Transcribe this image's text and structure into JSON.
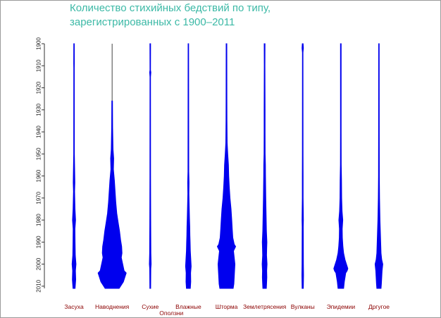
{
  "chart_data": {
    "type": "violin",
    "title_lines": [
      "Количество стихийных бедствий по типу,",
      "зарегистрированных с 1900–2011"
    ],
    "xlabel": "",
    "ylabel": "",
    "ylim": [
      1900,
      2011
    ],
    "y_reversed": true,
    "yticks": [
      "1900",
      "1910",
      "1920",
      "1930",
      "1940",
      "1950",
      "1960",
      "1970",
      "1980",
      "1990",
      "2000",
      "2010"
    ],
    "grid": false,
    "legend": "none",
    "color": "#0000ee",
    "categories": [
      {
        "label": "Засуха",
        "label_row": 0,
        "profile": [
          [
            1900,
            0.4
          ],
          [
            1909,
            0.5
          ],
          [
            1911,
            0.4
          ],
          [
            1950,
            0.5
          ],
          [
            1963,
            1.2
          ],
          [
            1967,
            0.8
          ],
          [
            1975,
            1.4
          ],
          [
            1980,
            2.2
          ],
          [
            1984,
            1.3
          ],
          [
            1990,
            1.5
          ],
          [
            1996,
            1.8
          ],
          [
            2000,
            2.8
          ],
          [
            2003,
            2.0
          ],
          [
            2007,
            2.4
          ],
          [
            2011,
            1.5
          ]
        ]
      },
      {
        "label": "Наводнения",
        "label_row": 0,
        "profile": [
          [
            1926,
            0.5
          ],
          [
            1938,
            0.7
          ],
          [
            1948,
            1.3
          ],
          [
            1952,
            2.2
          ],
          [
            1957,
            1.8
          ],
          [
            1962,
            3.2
          ],
          [
            1967,
            4.2
          ],
          [
            1972,
            5.2
          ],
          [
            1977,
            6.6
          ],
          [
            1981,
            8.5
          ],
          [
            1985,
            10.5
          ],
          [
            1989,
            12.0
          ],
          [
            1992,
            13.5
          ],
          [
            1995,
            14.0
          ],
          [
            1997,
            13.0
          ],
          [
            2000,
            15.0
          ],
          [
            2003,
            17.0
          ],
          [
            2004,
            20.0
          ],
          [
            2006,
            18.0
          ],
          [
            2008,
            16.0
          ],
          [
            2010,
            12.0
          ],
          [
            2011,
            10.0
          ]
        ]
      },
      {
        "label": "Сухие Оползни",
        "label_row": 0,
        "label_row_2": 1,
        "profile": [
          [
            1900,
            0.5
          ],
          [
            1912,
            0.4
          ],
          [
            1913,
            0.9
          ],
          [
            1915,
            0.4
          ],
          [
            1960,
            0.5
          ],
          [
            1972,
            0.6
          ],
          [
            1982,
            0.7
          ],
          [
            1995,
            0.9
          ],
          [
            2000,
            1.3
          ],
          [
            2002,
            0.8
          ],
          [
            2011,
            0.6
          ]
        ]
      },
      {
        "label": "Влажные",
        "label_row": 0,
        "profile": [
          [
            1900,
            0.4
          ],
          [
            1958,
            0.6
          ],
          [
            1963,
            1.0
          ],
          [
            1968,
            0.8
          ],
          [
            1975,
            1.3
          ],
          [
            1979,
            1.6
          ],
          [
            1983,
            2.0
          ],
          [
            1987,
            2.2
          ],
          [
            1990,
            2.5
          ],
          [
            1994,
            2.8
          ],
          [
            1998,
            3.5
          ],
          [
            2001,
            4.0
          ],
          [
            2004,
            3.2
          ],
          [
            2008,
            3.4
          ],
          [
            2011,
            2.8
          ]
        ]
      },
      {
        "label": "Шторма",
        "label_row": 0,
        "profile": [
          [
            1900,
            0.5
          ],
          [
            1925,
            0.6
          ],
          [
            1935,
            0.7
          ],
          [
            1945,
            1.0
          ],
          [
            1950,
            1.8
          ],
          [
            1955,
            2.8
          ],
          [
            1960,
            3.2
          ],
          [
            1965,
            4.0
          ],
          [
            1970,
            5.0
          ],
          [
            1975,
            6.5
          ],
          [
            1980,
            7.5
          ],
          [
            1984,
            8.2
          ],
          [
            1988,
            9.0
          ],
          [
            1991,
            11.0
          ],
          [
            1992,
            13.0
          ],
          [
            1994,
            10.0
          ],
          [
            1997,
            11.0
          ],
          [
            2000,
            12.0
          ],
          [
            2003,
            11.5
          ],
          [
            2006,
            11.0
          ],
          [
            2009,
            10.5
          ],
          [
            2011,
            9.5
          ]
        ]
      },
      {
        "label": "Землетрясения",
        "label_row": 0,
        "profile": [
          [
            1900,
            0.6
          ],
          [
            1910,
            0.5
          ],
          [
            1920,
            0.6
          ],
          [
            1930,
            0.7
          ],
          [
            1940,
            0.7
          ],
          [
            1950,
            0.8
          ],
          [
            1955,
            1.2
          ],
          [
            1960,
            1.3
          ],
          [
            1965,
            1.5
          ],
          [
            1970,
            1.7
          ],
          [
            1975,
            2.0
          ],
          [
            1980,
            2.3
          ],
          [
            1985,
            2.6
          ],
          [
            1990,
            3.3
          ],
          [
            1993,
            3.0
          ],
          [
            1996,
            2.8
          ],
          [
            2000,
            3.5
          ],
          [
            2003,
            3.0
          ],
          [
            2006,
            3.2
          ],
          [
            2009,
            2.8
          ],
          [
            2011,
            2.5
          ]
        ]
      },
      {
        "label": "Вулканы",
        "label_row": 0,
        "profile": [
          [
            1900,
            0.6
          ],
          [
            1902,
            1.0
          ],
          [
            1904,
            0.4
          ],
          [
            1950,
            0.5
          ],
          [
            1960,
            0.6
          ],
          [
            1970,
            0.6
          ],
          [
            1980,
            1.0
          ],
          [
            1983,
            0.8
          ],
          [
            1990,
            0.9
          ],
          [
            2000,
            1.0
          ],
          [
            2005,
            1.2
          ],
          [
            2011,
            0.9
          ]
        ]
      },
      {
        "label": "Эпидемии",
        "label_row": 0,
        "profile": [
          [
            1900,
            0.5
          ],
          [
            1920,
            0.5
          ],
          [
            1940,
            0.5
          ],
          [
            1955,
            0.6
          ],
          [
            1962,
            1.0
          ],
          [
            1970,
            1.2
          ],
          [
            1976,
            1.8
          ],
          [
            1980,
            2.8
          ],
          [
            1984,
            2.0
          ],
          [
            1988,
            2.2
          ],
          [
            1992,
            3.0
          ],
          [
            1995,
            4.0
          ],
          [
            1998,
            6.0
          ],
          [
            2000,
            8.0
          ],
          [
            2002,
            10.0
          ],
          [
            2003,
            9.0
          ],
          [
            2004,
            7.0
          ],
          [
            2006,
            6.0
          ],
          [
            2008,
            5.0
          ],
          [
            2011,
            4.0
          ]
        ]
      },
      {
        "label": "Дргугое",
        "label_row": 0,
        "profile": [
          [
            1900,
            0.4
          ],
          [
            1940,
            0.5
          ],
          [
            1960,
            0.6
          ],
          [
            1970,
            0.9
          ],
          [
            1975,
            1.2
          ],
          [
            1980,
            1.5
          ],
          [
            1985,
            2.0
          ],
          [
            1990,
            2.5
          ],
          [
            1995,
            3.0
          ],
          [
            1998,
            4.0
          ],
          [
            2000,
            5.5
          ],
          [
            2003,
            4.5
          ],
          [
            2006,
            4.0
          ],
          [
            2009,
            3.5
          ],
          [
            2011,
            3.0
          ]
        ]
      }
    ]
  }
}
